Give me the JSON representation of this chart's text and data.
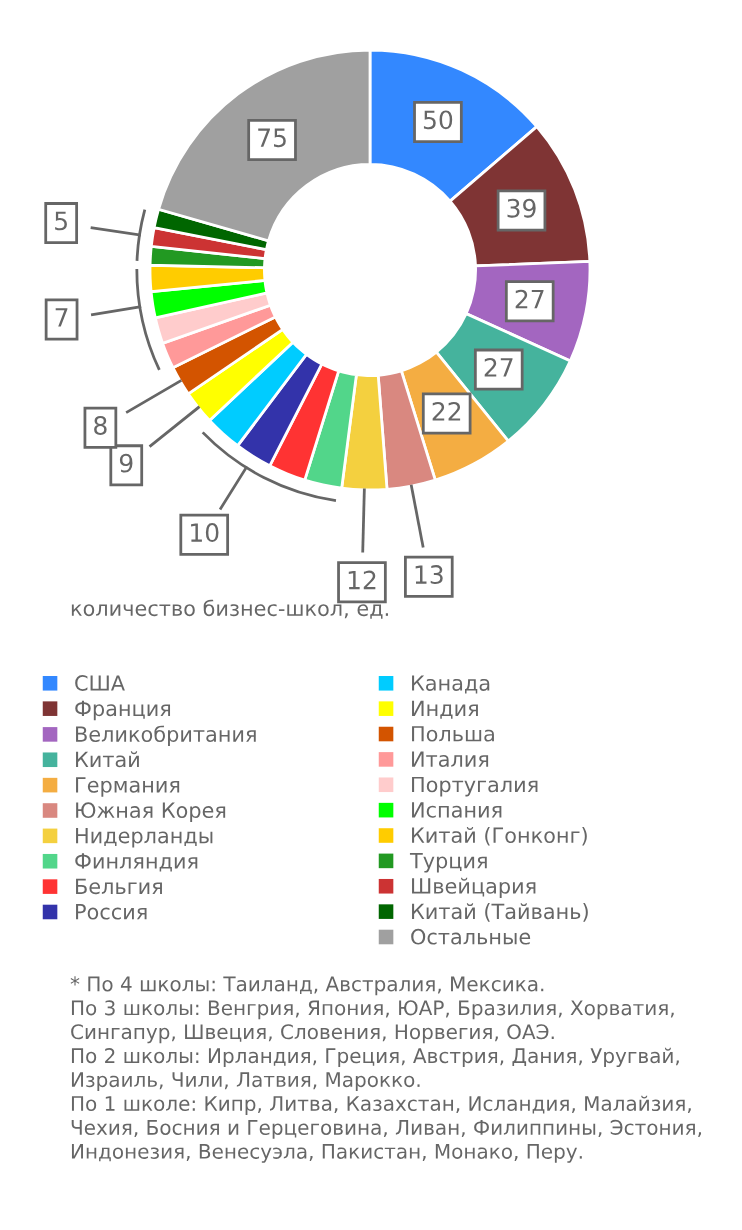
{
  "chart_data": {
    "type": "donut",
    "legend_title": "количество бизнес-школ, ед.",
    "legend": "bottom",
    "categories": [
      "США",
      "Франция",
      "Великобритания",
      "Китай",
      "Германия",
      "Южная Корея",
      "Нидерланды",
      "Финляндия",
      "Бельгия",
      "Россия",
      "Канада",
      "Индия",
      "Польша",
      "Италия",
      "Португалия",
      "Испания",
      "Китай (Гонконг)",
      "Турция",
      "Швейцария",
      "Китай (Тайвань)",
      "Остальные"
    ],
    "values": [
      50,
      39,
      27,
      27,
      22,
      13,
      12,
      10,
      10,
      10,
      10,
      9,
      8,
      7,
      7,
      7,
      7,
      5,
      5,
      5,
      75
    ],
    "colors": [
      "#3388ff",
      "#7f3434",
      "#a366c0",
      "#45b39d",
      "#f4ad42",
      "#d98880",
      "#f4d03f",
      "#52d68a",
      "#ff3333",
      "#3333aa",
      "#00ccff",
      "#ffff00",
      "#d35400",
      "#ff9999",
      "#ffcccc",
      "#00ff00",
      "#ffcc00",
      "#229922",
      "#cc3333",
      "#006600",
      "#a0a0a0"
    ],
    "value_labels": [
      "50",
      "39",
      "27",
      "27",
      "22",
      "13",
      "12",
      null,
      null,
      "10",
      null,
      "9",
      "8",
      null,
      null,
      "7",
      null,
      null,
      "5",
      null,
      "75"
    ],
    "annotations": [
      "* По 4 школы: Таиланд, Австралия, Мексика.\nПо 3 школы: Венгрия, Япония, ЮАР, Бразилия, Хорватия, Сингапур, Швеция, Словения, Норвегия, ОАЭ.\nПо 2 школы: Ирландия, Греция, Австрия, Дания, Уругвай, Израиль, Чили, Латвия, Марокко.\nПо 1 школе: Кипр, Литва, Казахстан, Исландия, Малайзия, Чехия, Босния и Герцеговина, Ливан, Филиппины, Эстония, Индонезия, Венесуэла, Пакистан, Монако, Перу."
    ]
  }
}
